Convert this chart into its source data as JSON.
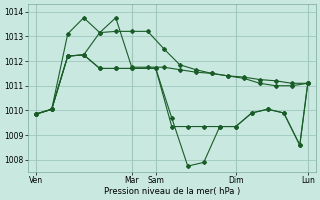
{
  "background_color": "#c8e8e0",
  "grid_color": "#a0c8be",
  "line_color": "#1a5c28",
  "xlabel": "Pression niveau de la mer( hPa )",
  "ylim": [
    1007.5,
    1014.3
  ],
  "yticks": [
    1008,
    1009,
    1010,
    1011,
    1012,
    1013,
    1014
  ],
  "xlim": [
    0,
    144
  ],
  "xtick_positions": [
    4,
    52,
    64,
    104,
    140
  ],
  "xtick_labels": [
    "Ven",
    "Mar",
    "Sam",
    "Dim",
    "Lun"
  ],
  "s1_x": [
    4,
    12,
    20,
    28,
    36,
    44,
    52,
    60,
    68,
    76,
    84,
    92,
    100,
    108,
    116,
    124,
    132,
    140
  ],
  "s1_y": [
    1009.85,
    1010.05,
    1012.2,
    1012.25,
    1013.15,
    1013.75,
    1011.75,
    1011.75,
    1011.75,
    1011.65,
    1011.55,
    1011.5,
    1011.4,
    1011.35,
    1011.25,
    1011.2,
    1011.1,
    1011.1
  ],
  "s2_x": [
    4,
    12,
    20,
    28,
    36,
    44,
    52,
    60,
    68,
    76,
    84,
    92,
    100,
    108,
    116,
    124,
    132,
    140
  ],
  "s2_y": [
    1009.85,
    1010.05,
    1013.1,
    1013.75,
    1013.15,
    1013.2,
    1013.2,
    1013.2,
    1012.5,
    1011.85,
    1011.65,
    1011.5,
    1011.4,
    1011.3,
    1011.1,
    1011.0,
    1011.0,
    1011.1
  ],
  "s3_x": [
    4,
    12,
    20,
    28,
    36,
    44,
    52,
    64,
    72,
    80,
    88,
    96,
    104,
    112,
    120,
    128,
    136,
    140
  ],
  "s3_y": [
    1009.85,
    1010.05,
    1012.2,
    1012.25,
    1011.7,
    1011.7,
    1011.7,
    1011.7,
    1009.7,
    1007.75,
    1007.9,
    1009.35,
    1009.35,
    1009.9,
    1010.05,
    1009.9,
    1008.6,
    1011.1
  ],
  "s4_x": [
    4,
    12,
    20,
    28,
    36,
    44,
    52,
    64,
    72,
    80,
    88,
    96,
    104,
    112,
    120,
    128,
    136,
    140
  ],
  "s4_y": [
    1009.85,
    1010.05,
    1012.2,
    1012.25,
    1011.7,
    1011.7,
    1011.7,
    1011.7,
    1009.35,
    1009.35,
    1009.35,
    1009.35,
    1009.35,
    1009.9,
    1010.05,
    1009.9,
    1008.6,
    1011.1
  ]
}
